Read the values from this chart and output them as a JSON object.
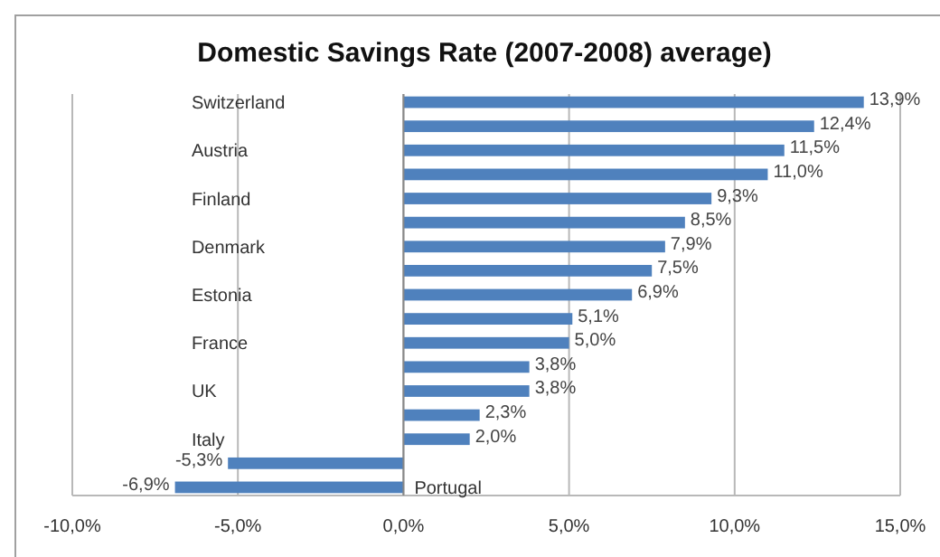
{
  "chart_data": {
    "type": "bar",
    "orientation": "horizontal",
    "title": "Domestic Savings Rate (2007-2008)  average)",
    "categories": [
      "Switzerland",
      null,
      "Austria",
      null,
      "Finland",
      null,
      "Denmark",
      null,
      "Estonia",
      null,
      "France",
      null,
      "UK",
      null,
      "Italy",
      null,
      "Portugal"
    ],
    "values": [
      13.9,
      12.4,
      11.5,
      11.0,
      9.3,
      8.5,
      7.9,
      7.5,
      6.9,
      5.1,
      5.0,
      3.8,
      3.8,
      2.3,
      2.0,
      -5.3,
      -6.9
    ],
    "value_labels": [
      "13,9%",
      "12,4%",
      "11,5%",
      "11,0%",
      "9,3%",
      "8,5%",
      "7,9%",
      "7,5%",
      "6,9%",
      "5,1%",
      "5,0%",
      "3,8%",
      "3,8%",
      "2,3%",
      "2,0%",
      "-5,3%",
      "-6,9%"
    ],
    "color": "#4f81bd",
    "xlim": [
      -10,
      15
    ],
    "xticks": [
      {
        "value": -10,
        "label": "-10,0%"
      },
      {
        "value": -5,
        "label": "-5,0%"
      },
      {
        "value": 0,
        "label": "0,0%"
      },
      {
        "value": 5,
        "label": "5,0%"
      },
      {
        "value": 10,
        "label": "10,0%"
      },
      {
        "value": 15,
        "label": "15,0%"
      }
    ],
    "grid": "x"
  }
}
